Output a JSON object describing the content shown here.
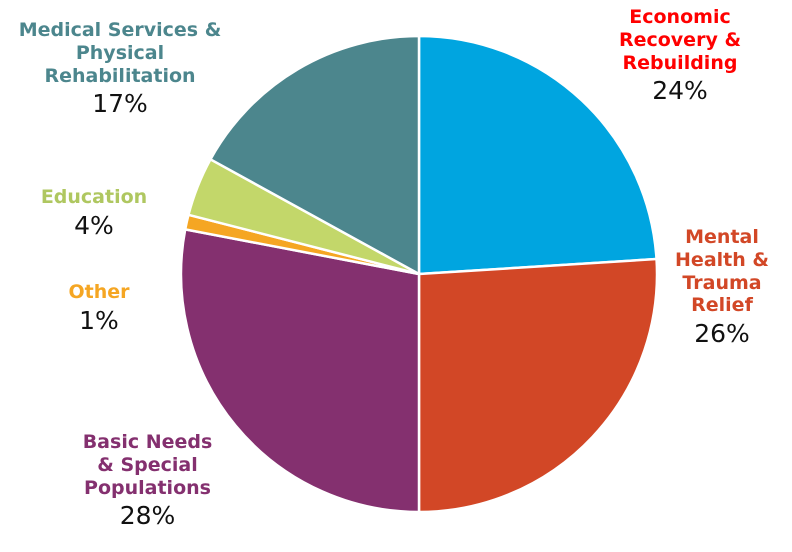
{
  "chart_data": {
    "type": "pie",
    "title": "",
    "start": "top, clockwise",
    "slices": [
      {
        "label": "Economic\nRecovery &\nRebuilding",
        "value": 24,
        "value_label": "24%",
        "color": "#00A5E0",
        "label_color": "#FF0000"
      },
      {
        "label": "Mental\nHealth &\nTrauma\nRelief",
        "value": 26,
        "value_label": "26%",
        "color": "#D24726",
        "label_color": "#D24726"
      },
      {
        "label": "Basic Needs\n& Special\nPopulations",
        "value": 28,
        "value_label": "28%",
        "color": "#84306F",
        "label_color": "#84306F"
      },
      {
        "label": "Other",
        "value": 1,
        "value_label": "1%",
        "color": "#F5A623",
        "label_color": "#F5A623"
      },
      {
        "label": "Education",
        "value": 4,
        "value_label": "4%",
        "color": "#C3D76A",
        "label_color": "#AFC760"
      },
      {
        "label": "Medical Services &\nPhysical\nRehabilitation",
        "value": 17,
        "value_label": "17%",
        "color": "#4C868D",
        "label_color": "#4C868D"
      }
    ]
  }
}
